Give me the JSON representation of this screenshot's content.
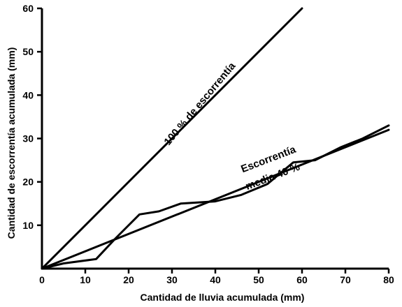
{
  "chart_data": {
    "type": "line",
    "xlabel": "Cantidad de lluvia acumulada (mm)",
    "ylabel": "Cantidad de escorrentía acumulada (mm)",
    "xlim": [
      0,
      80
    ],
    "ylim": [
      0,
      60
    ],
    "xticks": [
      0,
      10,
      20,
      30,
      40,
      50,
      60,
      70,
      80
    ],
    "yticks": [
      10,
      20,
      30,
      40,
      50,
      60
    ],
    "grid": false,
    "legend": "none",
    "series": [
      {
        "x": [
          0,
          60
        ],
        "y": [
          0,
          60
        ]
      },
      {
        "x": [
          0,
          80
        ],
        "y": [
          0,
          32
        ]
      },
      {
        "x": [
          0,
          5,
          12.5,
          17,
          22.5,
          27,
          32,
          40,
          46,
          52,
          58,
          63,
          69,
          74,
          80
        ],
        "y": [
          0,
          1.2,
          2.2,
          7,
          12.5,
          13.2,
          15,
          15.5,
          17,
          19.5,
          24.5,
          25,
          28,
          30,
          33
        ]
      }
    ],
    "annotations": [
      {
        "text": "100 % de escorrentía",
        "x": 37,
        "y": 37.5,
        "angle": -50
      },
      {
        "text": "Escorrentía",
        "x": 52.5,
        "y": 24.5,
        "angle": -21
      },
      {
        "text": "media 40 %",
        "x": 53.5,
        "y": 20.5,
        "angle": -21
      }
    ]
  }
}
